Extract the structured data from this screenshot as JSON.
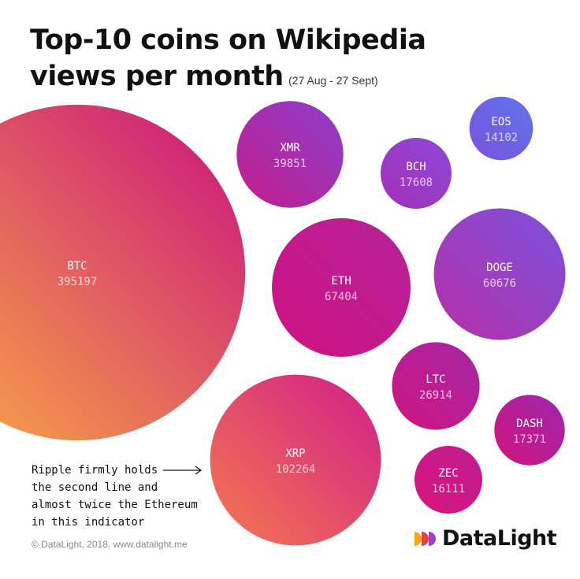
{
  "header": {
    "title_line1": "Top-10 coins on Wikipedia",
    "title_line2": "views per month",
    "date_range": "(27 Aug - 27 Sept)"
  },
  "annotation": {
    "lines": [
      "Ripple firmly holds",
      "the second line and",
      "almost twice the Ethereum",
      "in this indicator"
    ]
  },
  "footer": {
    "copyright": "© DataLight, 2018, www.datalight.me"
  },
  "brand": {
    "name": "DataLight",
    "logo_colors": [
      "#f5a623",
      "#e8413c",
      "#9b3fd0"
    ]
  },
  "chart_data": {
    "type": "bubble",
    "title": "Top-10 coins on Wikipedia views per month",
    "subtitle": "(27 Aug - 27 Sept)",
    "categories": [
      "BTC",
      "XRP",
      "ETH",
      "DOGE",
      "XMR",
      "LTC",
      "BCH",
      "DASH",
      "ZEC",
      "EOS"
    ],
    "values": [
      395197,
      102264,
      67404,
      60676,
      39851,
      26914,
      17608,
      17371,
      16111,
      14102
    ],
    "colors": {
      "BTC": [
        "#fbb040",
        "#c8127f"
      ],
      "XRP": [
        "#f5794e",
        "#cf1e8a"
      ],
      "ETH": [
        "#d0127f",
        "#b6229b"
      ],
      "DOGE": [
        "#b72fa7",
        "#7a52dc"
      ],
      "XMR": [
        "#c41c8b",
        "#8b3fcc"
      ],
      "LTC": [
        "#d0157f",
        "#a427a5"
      ],
      "BCH": [
        "#a52fb8",
        "#8b49d6"
      ],
      "DASH": [
        "#d0157f",
        "#a026ac"
      ],
      "ZEC": [
        "#d8147a",
        "#c01c93"
      ],
      "EOS": [
        "#7a52dc",
        "#5f74ee"
      ]
    }
  }
}
